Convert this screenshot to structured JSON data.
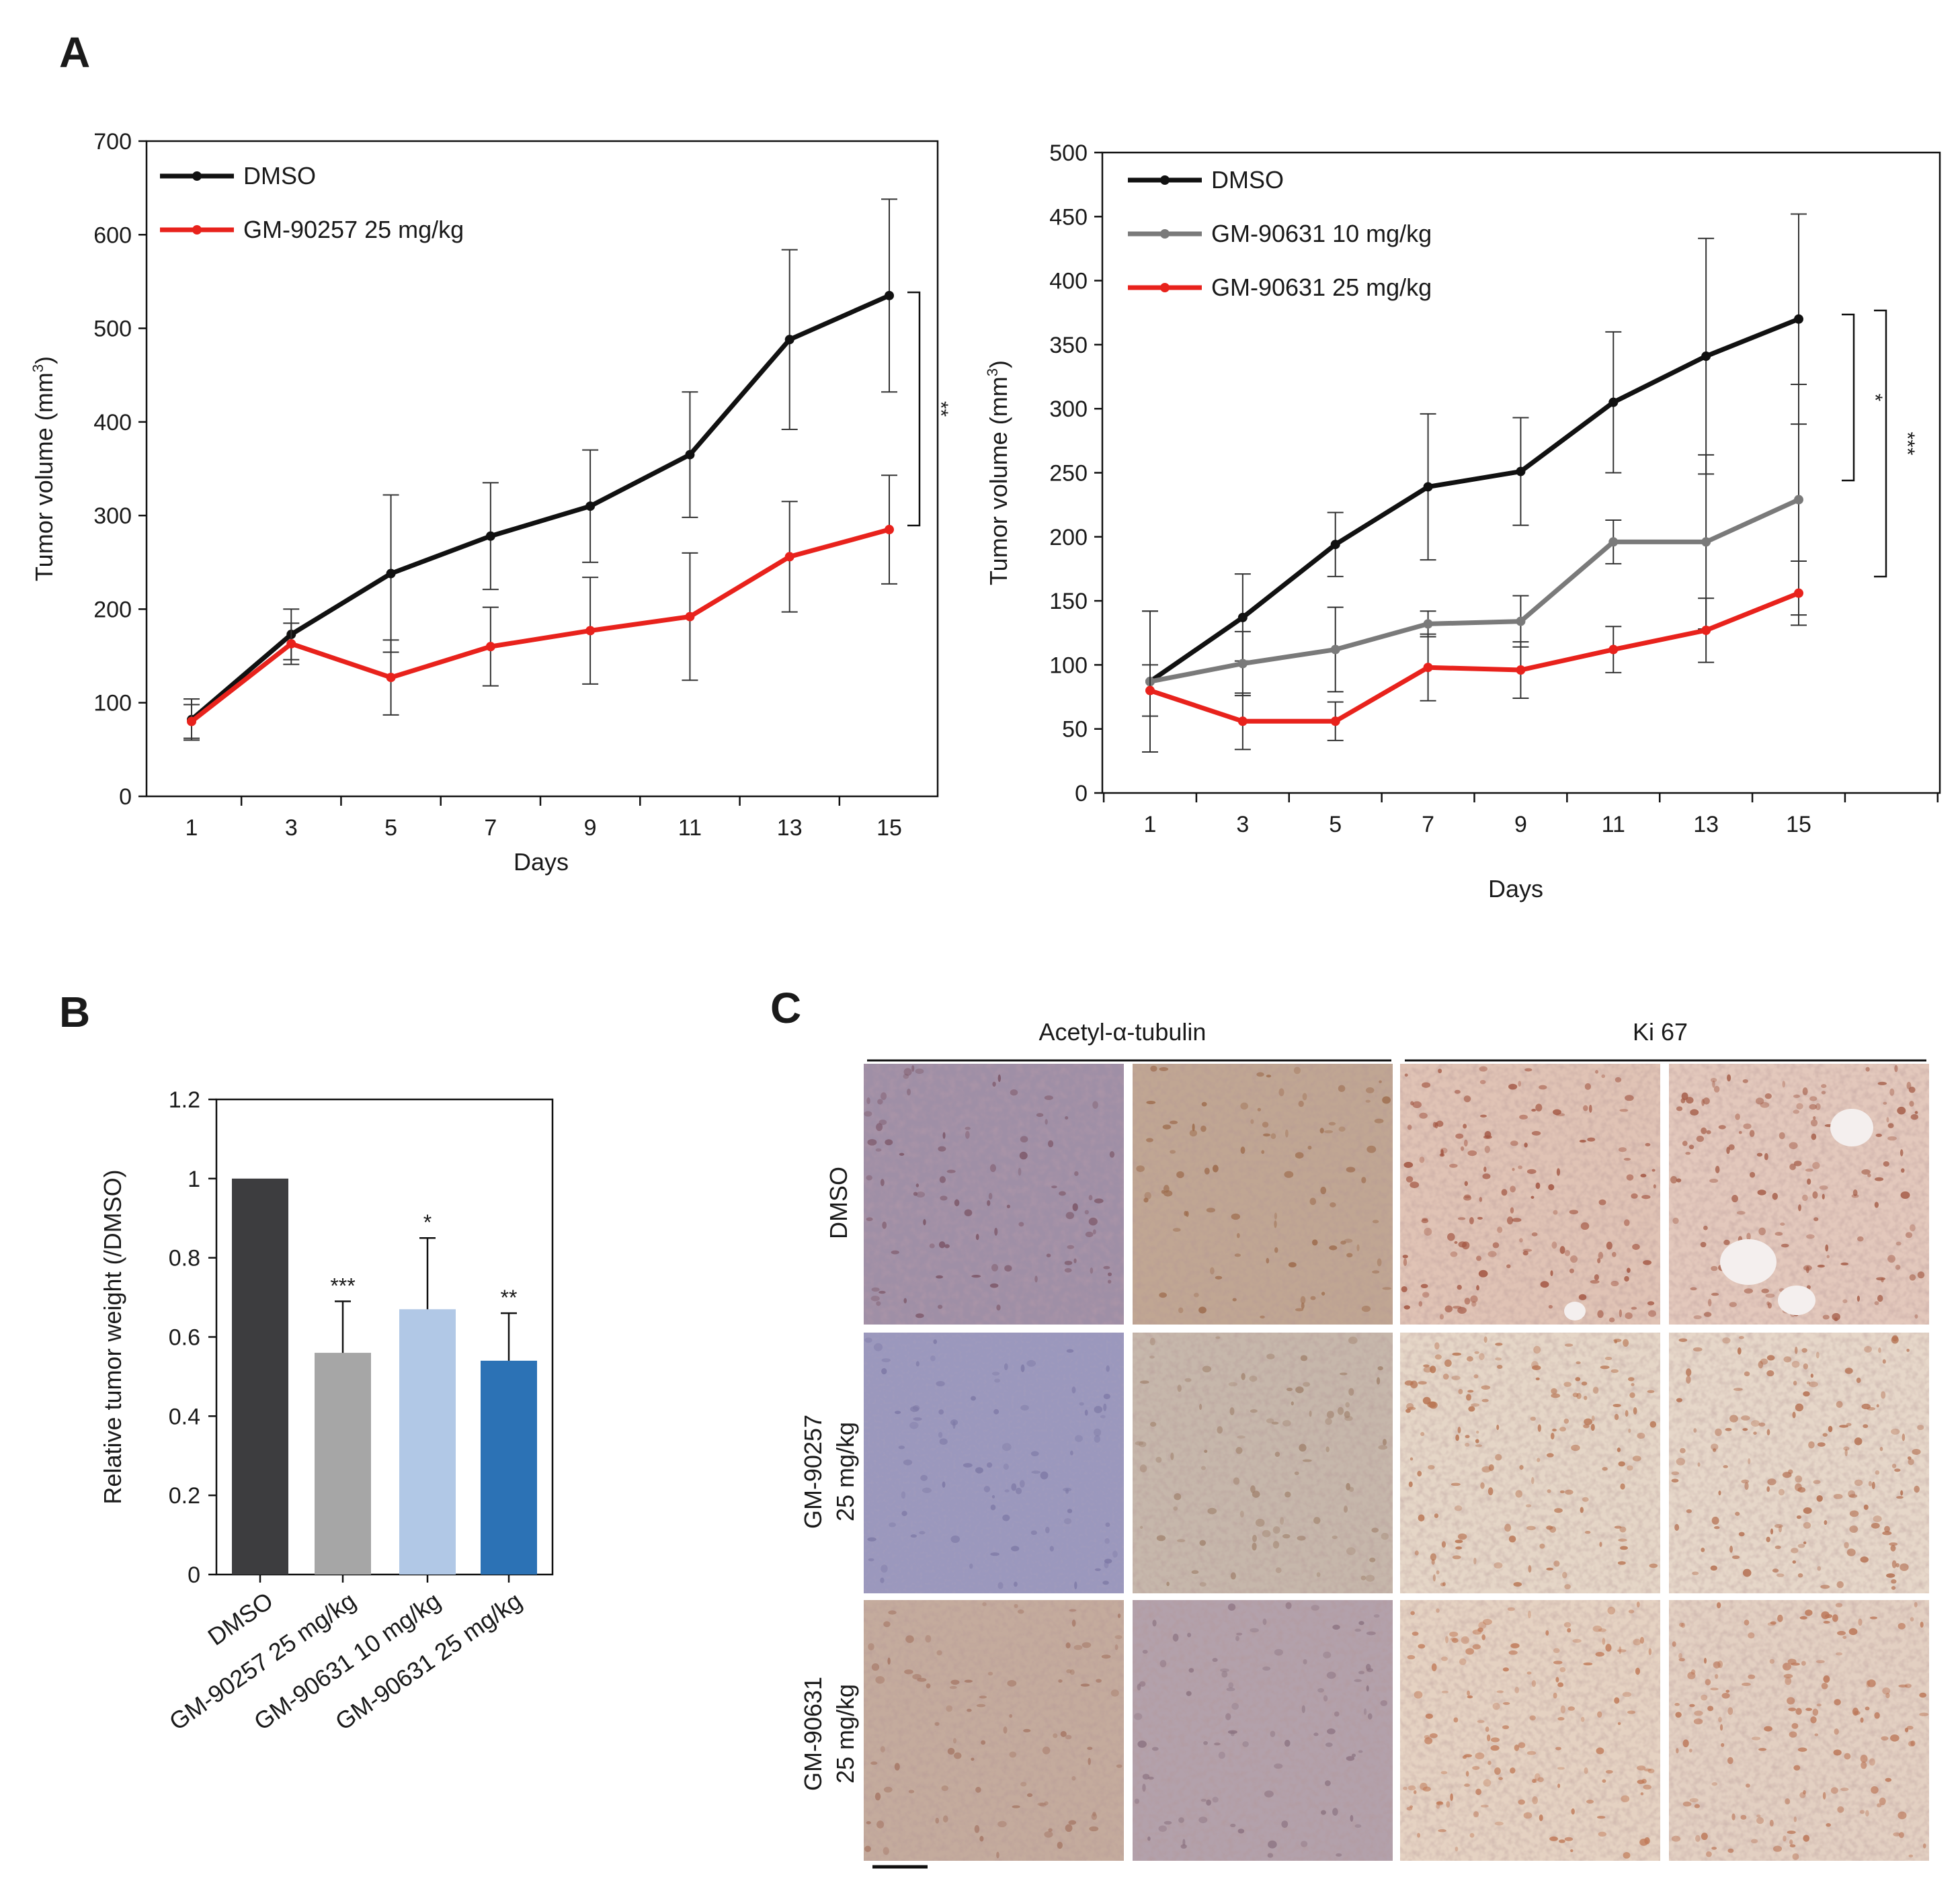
{
  "panel_labels": {
    "a": "A",
    "b": "B",
    "c": "C"
  },
  "colors": {
    "dmso": "#111111",
    "gm90257": "#e8221c",
    "gm90631_10": "#7a7a7a",
    "gm90631_25": "#e8221c",
    "bar_dmso": "#3d3d3f",
    "bar_gm90257": "#a6a6a6",
    "bar_gm90631_10": "#b1c8e6",
    "bar_gm90631_25": "#2c72b5"
  },
  "chart_data": [
    {
      "id": "A-left",
      "type": "line",
      "x": [
        1,
        3,
        5,
        7,
        9,
        11,
        13,
        15
      ],
      "xlabel": "Days",
      "ylabel": "Tumor volume  (mm³)",
      "ylabel_main": "Tumor volume  (mm",
      "ylabel_sup": "3",
      "ylabel_close": ")",
      "ylim": [
        0,
        700
      ],
      "yticks": [
        0,
        100,
        200,
        300,
        400,
        500,
        600,
        700
      ],
      "series": [
        {
          "name": "DMSO",
          "color": "#111111",
          "values": [
            82,
            173,
            238,
            278,
            310,
            365,
            488,
            535
          ],
          "err": [
            22,
            27,
            84,
            57,
            60,
            67,
            96,
            103
          ]
        },
        {
          "name": "GM-90257 25 mg/kg",
          "color": "#e8221c",
          "values": [
            80,
            163,
            127,
            160,
            177,
            192,
            256,
            285
          ],
          "err": [
            18,
            22,
            40,
            42,
            57,
            68,
            59,
            58
          ]
        }
      ],
      "significance": [
        {
          "label": "**",
          "between": [
            "DMSO",
            "GM-90257 25 mg/kg"
          ]
        }
      ],
      "legend": "top-left"
    },
    {
      "id": "A-right",
      "type": "line",
      "x": [
        1,
        3,
        5,
        7,
        9,
        11,
        13,
        15
      ],
      "xlabel": "Days",
      "ylabel": "Tumor volume  (mm³)",
      "ylabel_main": "Tumor volume  (mm",
      "ylabel_sup": "3",
      "ylabel_close": ")",
      "ylim": [
        0,
        500
      ],
      "yticks": [
        0,
        50,
        100,
        150,
        200,
        250,
        300,
        350,
        400,
        450,
        500
      ],
      "series": [
        {
          "name": "DMSO",
          "color": "#111111",
          "values": [
            87,
            137,
            194,
            239,
            251,
            305,
            341,
            370
          ],
          "err": [
            55,
            34,
            25,
            57,
            42,
            55,
            92,
            82
          ]
        },
        {
          "name": "GM-90631 10 mg/kg",
          "color": "#7a7a7a",
          "values": [
            87,
            101,
            112,
            132,
            134,
            196,
            196,
            229
          ],
          "err": [
            55,
            25,
            33,
            10,
            20,
            17,
            68,
            90
          ]
        },
        {
          "name": "GM-90631 25 mg/kg",
          "color": "#e8221c",
          "values": [
            80,
            56,
            56,
            98,
            96,
            112,
            127,
            156
          ],
          "err": [
            20,
            22,
            15,
            26,
            22,
            18,
            25,
            25
          ]
        }
      ],
      "significance": [
        {
          "label": "*",
          "between": [
            "DMSO",
            "GM-90631 10 mg/kg"
          ]
        },
        {
          "label": "***",
          "between": [
            "DMSO",
            "GM-90631 25 mg/kg"
          ]
        }
      ],
      "legend": "top-left"
    },
    {
      "id": "B",
      "type": "bar",
      "categories": [
        "DMSO",
        "GM-90257 25 mg/kg",
        "GM-90631 10 mg/kg",
        "GM-90631 25 mg/kg"
      ],
      "values": [
        1.0,
        0.56,
        0.67,
        0.54
      ],
      "err": [
        0,
        0.13,
        0.18,
        0.12
      ],
      "significance": [
        "",
        "***",
        "*",
        "**"
      ],
      "colors": [
        "#3d3d3f",
        "#a6a6a6",
        "#b1c8e6",
        "#2c72b5"
      ],
      "ylabel": "Relative tumor weight (/DMSO)",
      "ylim": [
        0,
        1.2
      ],
      "yticks": [
        "0",
        "0.2",
        "0.4",
        "0.6",
        "0.8",
        "1",
        "1.2"
      ]
    }
  ],
  "panel_c": {
    "column_headers": [
      "Acetyl-α-tubulin",
      "Ki 67"
    ],
    "row_labels": [
      {
        "line1": "DMSO",
        "line2": ""
      },
      {
        "line1": "GM-90257",
        "line2": "25 mg/kg"
      },
      {
        "line1": "GM-90631",
        "line2": "25 mg/kg"
      }
    ],
    "tiles": [
      [
        {
          "stain": "acetyl-alpha-tubulin",
          "base": "#9f8fa6",
          "spot": "#7b5566"
        },
        {
          "stain": "acetyl-alpha-tubulin",
          "base": "#c0a693",
          "spot": "#9c6a4b"
        },
        {
          "stain": "ki67",
          "base": "#e0c3b5",
          "spot": "#a1533f"
        },
        {
          "stain": "ki67",
          "base": "#e3c8bc",
          "spot": "#a45c47"
        }
      ],
      [
        {
          "stain": "acetyl-alpha-tubulin",
          "base": "#9b98bd",
          "spot": "#7d78a5"
        },
        {
          "stain": "acetyl-alpha-tubulin",
          "base": "#c6b7ab",
          "spot": "#a2846f"
        },
        {
          "stain": "ki67",
          "base": "#e5d6c7",
          "spot": "#b7724f"
        },
        {
          "stain": "ki67",
          "base": "#e6d7c9",
          "spot": "#b26b4b"
        }
      ],
      [
        {
          "stain": "acetyl-alpha-tubulin",
          "base": "#c4ab9d",
          "spot": "#a57664"
        },
        {
          "stain": "acetyl-alpha-tubulin",
          "base": "#b3a1ab",
          "spot": "#8c7381"
        },
        {
          "stain": "ki67",
          "base": "#e5d2c2",
          "spot": "#c07a58"
        },
        {
          "stain": "ki67",
          "base": "#e3d0c2",
          "spot": "#bb7556"
        }
      ]
    ]
  }
}
